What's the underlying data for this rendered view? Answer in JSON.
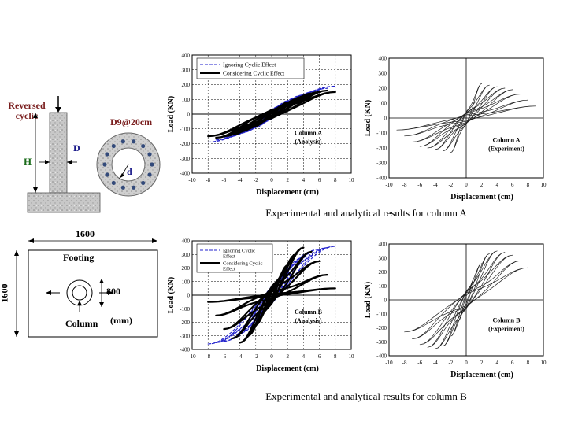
{
  "diagram": {
    "load_label": "Reversed cyclic",
    "height_label": "H",
    "depth_label": "D",
    "section_label": "D9@20cm",
    "inner_dim_label": "d"
  },
  "plan": {
    "width_label": "1600",
    "height_label": "1600",
    "footing_label": "Footing",
    "column_label": "Column",
    "dim_label": "800",
    "unit_label": "(mm)"
  },
  "captions": {
    "column_a": "Experimental and analytical results for column A",
    "column_b": "Experimental and analytical results for column B"
  },
  "chart_data": [
    {
      "type": "line",
      "xlabel": "Displacement (cm)",
      "ylabel": "Load (KN)",
      "xlim": [
        -10,
        10
      ],
      "ylim": [
        -400,
        400
      ],
      "xticks": [
        "-10",
        "-8",
        "-6",
        "-4",
        "-2",
        "0",
        "2",
        "4",
        "6",
        "8",
        "10"
      ],
      "yticks": [
        "400",
        "300",
        "200",
        "100",
        "0",
        "-100",
        "-200",
        "-300",
        "-400"
      ],
      "grid": true,
      "legend": [
        "Ignoring Cyclic Effect",
        "Considering Cyclic Effect"
      ],
      "annotation": [
        "Column A",
        "(Analysis)"
      ],
      "series": [
        {
          "name": "Ignoring Cyclic Effect",
          "style": "dashed",
          "color": "#2222cc",
          "amplitudes": [
            [
              1,
              60
            ],
            [
              2,
              90
            ],
            [
              3,
              110
            ],
            [
              4,
              130
            ],
            [
              5,
              145
            ],
            [
              6,
              160
            ],
            [
              7,
              175
            ],
            [
              8,
              190
            ]
          ]
        },
        {
          "name": "Considering Cyclic Effect",
          "style": "solid",
          "color": "#000000",
          "amplitudes": [
            [
              1,
              50
            ],
            [
              2,
              80
            ],
            [
              3,
              100
            ],
            [
              4,
              120
            ],
            [
              5,
              140
            ],
            [
              6,
              150
            ],
            [
              7,
              160
            ],
            [
              8,
              150
            ]
          ]
        }
      ]
    },
    {
      "type": "line",
      "xlabel": "Displacement (cm)",
      "ylabel": "Load (KN)",
      "xlim": [
        -10,
        10
      ],
      "ylim": [
        -400,
        400
      ],
      "xticks": [
        "-10",
        "-8",
        "-6",
        "-4",
        "-2",
        "0",
        "2",
        "4",
        "6",
        "8",
        "10"
      ],
      "yticks": [
        "400",
        "300",
        "200",
        "100",
        "0",
        "-100",
        "-200",
        "-300",
        "-400"
      ],
      "grid": false,
      "legend": [],
      "annotation": [
        "Column A",
        "(Experiment)"
      ],
      "series": [
        {
          "style": "solid",
          "color": "#222222",
          "amplitudes": [
            [
              2,
              230
            ],
            [
              3,
              220
            ],
            [
              4,
              210
            ],
            [
              5,
              200
            ],
            [
              6,
              190
            ],
            [
              7,
              160
            ],
            [
              8,
              120
            ],
            [
              9,
              80
            ]
          ]
        }
      ]
    },
    {
      "type": "line",
      "xlabel": "Displacement (cm)",
      "ylabel": "Load (KN)",
      "xlim": [
        -10,
        10
      ],
      "ylim": [
        -400,
        400
      ],
      "xticks": [
        "-10",
        "-8",
        "-6",
        "-4",
        "-2",
        "0",
        "2",
        "4",
        "6",
        "8",
        "10"
      ],
      "yticks": [
        "400",
        "300",
        "200",
        "100",
        "0",
        "-100",
        "-200",
        "-300",
        "-400"
      ],
      "grid": true,
      "legend": [
        "Ignoring Cyclic Effect",
        "Considering Cyclic Effect"
      ],
      "annotation": [
        "Column B",
        "(Analysis)"
      ],
      "series": [
        {
          "name": "Ignoring Cyclic Effect",
          "style": "dashed",
          "color": "#2222cc",
          "amplitudes": [
            [
              1,
              100
            ],
            [
              2,
              170
            ],
            [
              3,
              230
            ],
            [
              4,
              280
            ],
            [
              5,
              320
            ],
            [
              6,
              340
            ],
            [
              7,
              350
            ],
            [
              8,
              360
            ]
          ]
        },
        {
          "name": "Considering Cyclic Effect",
          "style": "solid",
          "color": "#000000",
          "amplitudes": [
            [
              1,
              120
            ],
            [
              2,
              220
            ],
            [
              3,
              300
            ],
            [
              4,
              350
            ],
            [
              5,
              320
            ],
            [
              6,
              250
            ],
            [
              7,
              150
            ],
            [
              8,
              50
            ]
          ]
        }
      ]
    },
    {
      "type": "line",
      "xlabel": "Displacement (cm)",
      "ylabel": "Load (KN)",
      "xlim": [
        -10,
        10
      ],
      "ylim": [
        -400,
        400
      ],
      "xticks": [
        "-10",
        "-8",
        "-6",
        "-4",
        "-2",
        "0",
        "2",
        "4",
        "6",
        "8",
        "10"
      ],
      "yticks": [
        "400",
        "300",
        "200",
        "100",
        "0",
        "-100",
        "-200",
        "-300",
        "-400"
      ],
      "grid": false,
      "legend": [],
      "annotation": [
        "Column B",
        "(Experiment)"
      ],
      "series": [
        {
          "style": "solid",
          "color": "#222222",
          "amplitudes": [
            [
              1,
              150
            ],
            [
              2,
              260
            ],
            [
              3,
              330
            ],
            [
              4,
              350
            ],
            [
              5,
              340
            ],
            [
              6,
              320
            ],
            [
              7,
              280
            ],
            [
              8,
              230
            ]
          ]
        }
      ]
    }
  ]
}
